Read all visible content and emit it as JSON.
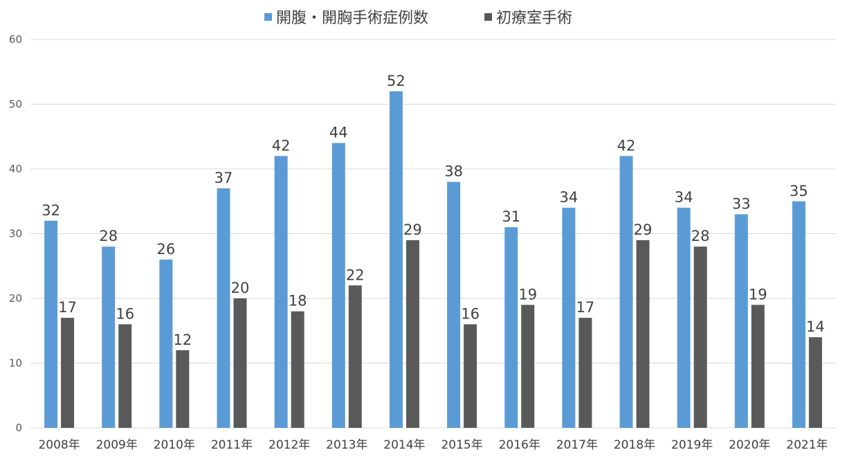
{
  "chart_data": {
    "type": "bar",
    "title": "",
    "xlabel": "",
    "ylabel": "",
    "ylim": [
      0,
      60
    ],
    "yticks": [
      0,
      10,
      20,
      30,
      40,
      50,
      60
    ],
    "grid": true,
    "legend_position": "top",
    "categories": [
      "2008年",
      "2009年",
      "2010年",
      "2011年",
      "2012年",
      "2013年",
      "2014年",
      "2015年",
      "2016年",
      "2017年",
      "2018年",
      "2019年",
      "2020年",
      "2021年"
    ],
    "series": [
      {
        "name": "開腹・開胸手術症例数",
        "color": "#5b9bd5",
        "values": [
          32,
          28,
          26,
          37,
          42,
          44,
          52,
          38,
          31,
          34,
          42,
          34,
          33,
          35
        ]
      },
      {
        "name": "初療室手術",
        "color": "#595959",
        "values": [
          17,
          16,
          12,
          20,
          18,
          22,
          29,
          16,
          19,
          17,
          29,
          28,
          19,
          14
        ]
      }
    ]
  }
}
